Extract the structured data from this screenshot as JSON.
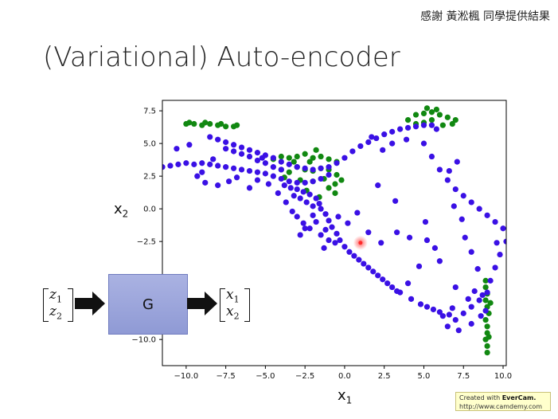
{
  "header": {
    "credit": "感謝 黃淞楓 同學提供結果",
    "title": "(Variational) Auto-encoder"
  },
  "chart_data": {
    "type": "scatter",
    "xlim": [
      -11.5,
      10.2
    ],
    "ylim": [
      -12.0,
      8.3
    ],
    "x_ticks": [
      -10.0,
      -7.5,
      -5.0,
      -2.5,
      0.0,
      2.5,
      5.0,
      7.5,
      10.0
    ],
    "x_tick_labels": [
      "−10.0",
      "−7.5",
      "−5.0",
      "−2.5",
      "0.0",
      "2.5",
      "5.0",
      "7.5",
      "10.0"
    ],
    "y_ticks": [
      7.5,
      5.0,
      2.5,
      0.0,
      -2.5,
      -10.0
    ],
    "y_tick_labels": [
      "7.5",
      "5.0",
      "2.5",
      "0.0",
      "−2.5",
      "−10.0"
    ],
    "xlabel": "x",
    "xlabel_sub": "1",
    "ylabel": "x",
    "ylabel_sub": "2",
    "grid": false,
    "highlight_point": {
      "x": 1.0,
      "y": -2.6,
      "color": "#ff2a2a"
    },
    "series": [
      {
        "color": "#118811",
        "points": [
          [
            -10.0,
            6.5
          ],
          [
            -9.5,
            6.5
          ],
          [
            -9.0,
            6.4
          ],
          [
            -8.5,
            6.5
          ],
          [
            -8.0,
            6.4
          ],
          [
            -7.5,
            6.3
          ],
          [
            -7.0,
            6.3
          ],
          [
            -9.8,
            6.6
          ],
          [
            -8.8,
            6.6
          ],
          [
            -7.8,
            6.5
          ],
          [
            -6.8,
            6.4
          ],
          [
            -4.5,
            3.8
          ],
          [
            -4.0,
            4.0
          ],
          [
            -3.5,
            3.9
          ],
          [
            -3.0,
            4.0
          ],
          [
            -2.5,
            4.2
          ],
          [
            -2.0,
            3.9
          ],
          [
            -1.5,
            4.0
          ],
          [
            -1.0,
            3.8
          ],
          [
            -0.5,
            3.6
          ],
          [
            -1.8,
            4.5
          ],
          [
            -4.0,
            3.0
          ],
          [
            -3.5,
            2.8
          ],
          [
            -3.0,
            3.2
          ],
          [
            -2.5,
            3.0
          ],
          [
            -2.0,
            2.9
          ],
          [
            -1.5,
            3.1
          ],
          [
            -1.0,
            3.0
          ],
          [
            -0.5,
            2.6
          ],
          [
            -2.8,
            2.2
          ],
          [
            -2.0,
            2.1
          ],
          [
            -1.3,
            2.3
          ],
          [
            -0.6,
            1.9
          ],
          [
            -3.8,
            2.4
          ],
          [
            -1.0,
            1.6
          ],
          [
            -2.4,
            1.4
          ],
          [
            -1.6,
            0.9
          ],
          [
            -0.6,
            1.2
          ],
          [
            -0.2,
            2.2
          ],
          [
            -3.2,
            3.6
          ],
          [
            -2.2,
            3.6
          ],
          [
            4.5,
            7.2
          ],
          [
            5.0,
            7.3
          ],
          [
            5.5,
            7.4
          ],
          [
            6.0,
            7.2
          ],
          [
            6.5,
            7.0
          ],
          [
            5.2,
            7.7
          ],
          [
            5.8,
            7.6
          ],
          [
            4.0,
            6.8
          ],
          [
            4.5,
            6.5
          ],
          [
            5.0,
            6.6
          ],
          [
            6.8,
            6.5
          ],
          [
            7.0,
            6.8
          ],
          [
            6.2,
            6.4
          ],
          [
            5.5,
            6.8
          ],
          [
            8.9,
            -6.0
          ],
          [
            9.0,
            -6.5
          ],
          [
            8.9,
            -7.0
          ],
          [
            9.0,
            -7.5
          ],
          [
            9.1,
            -8.0
          ],
          [
            8.9,
            -8.5
          ],
          [
            9.0,
            -9.0
          ],
          [
            9.0,
            -9.5
          ],
          [
            8.9,
            -10.0
          ],
          [
            9.0,
            -10.5
          ],
          [
            9.0,
            -11.0
          ],
          [
            8.9,
            -5.5
          ],
          [
            9.1,
            -9.8
          ],
          [
            9.2,
            -7.2
          ]
        ]
      },
      {
        "color": "#3a10e5",
        "points": [
          [
            -11.5,
            3.2
          ],
          [
            -11.0,
            3.3
          ],
          [
            -10.5,
            3.4
          ],
          [
            -10.0,
            3.5
          ],
          [
            -9.5,
            3.4
          ],
          [
            -9.0,
            3.5
          ],
          [
            -8.5,
            3.4
          ],
          [
            -8.0,
            3.3
          ],
          [
            -7.5,
            3.2
          ],
          [
            -7.0,
            3.1
          ],
          [
            -6.5,
            3.0
          ],
          [
            -6.0,
            2.9
          ],
          [
            -5.5,
            2.8
          ],
          [
            -5.0,
            2.7
          ],
          [
            -4.5,
            2.5
          ],
          [
            -4.0,
            2.3
          ],
          [
            -3.5,
            2.1
          ],
          [
            -3.0,
            2.0
          ],
          [
            -2.5,
            2.0
          ],
          [
            -2.0,
            2.1
          ],
          [
            -1.5,
            2.3
          ],
          [
            -1.0,
            2.6
          ],
          [
            -8.5,
            5.5
          ],
          [
            -8.0,
            5.3
          ],
          [
            -7.5,
            5.1
          ],
          [
            -7.0,
            4.9
          ],
          [
            -6.5,
            4.7
          ],
          [
            -6.0,
            4.5
          ],
          [
            -5.5,
            4.3
          ],
          [
            -5.0,
            4.1
          ],
          [
            -4.5,
            3.9
          ],
          [
            -4.0,
            3.6
          ],
          [
            -3.5,
            3.4
          ],
          [
            -3.0,
            3.2
          ],
          [
            -2.5,
            3.1
          ],
          [
            -2.0,
            3.0
          ],
          [
            -1.5,
            3.1
          ],
          [
            -1.0,
            3.2
          ],
          [
            -0.5,
            3.5
          ],
          [
            0.0,
            3.9
          ],
          [
            0.5,
            4.4
          ],
          [
            1.0,
            4.8
          ],
          [
            1.5,
            5.1
          ],
          [
            2.0,
            5.4
          ],
          [
            2.5,
            5.7
          ],
          [
            3.0,
            5.9
          ],
          [
            3.5,
            6.1
          ],
          [
            4.0,
            6.2
          ],
          [
            4.5,
            6.3
          ],
          [
            5.0,
            6.4
          ],
          [
            5.5,
            6.4
          ],
          [
            5.8,
            6.1
          ],
          [
            -7.0,
            4.4
          ],
          [
            -6.0,
            4.0
          ],
          [
            -5.0,
            3.5
          ],
          [
            -4.0,
            3.0
          ],
          [
            -7.5,
            4.6
          ],
          [
            -6.5,
            4.2
          ],
          [
            -5.5,
            3.7
          ],
          [
            -4.5,
            3.2
          ],
          [
            -3.8,
            1.8
          ],
          [
            -3.4,
            1.6
          ],
          [
            -3.0,
            1.5
          ],
          [
            -2.6,
            1.3
          ],
          [
            -2.2,
            1.1
          ],
          [
            -1.8,
            0.8
          ],
          [
            -1.6,
            0.4
          ],
          [
            -2.0,
            0.2
          ],
          [
            -2.4,
            0.5
          ],
          [
            -2.8,
            0.8
          ],
          [
            -3.2,
            1.0
          ],
          [
            -1.5,
            0.0
          ],
          [
            -1.2,
            -0.4
          ],
          [
            -1.0,
            -0.9
          ],
          [
            -0.8,
            -1.4
          ],
          [
            -0.5,
            -1.9
          ],
          [
            -0.3,
            -2.4
          ],
          [
            0.0,
            -2.9
          ],
          [
            0.3,
            -3.3
          ],
          [
            0.6,
            -3.6
          ],
          [
            0.9,
            -3.9
          ],
          [
            1.2,
            -4.2
          ],
          [
            1.5,
            -4.5
          ],
          [
            1.8,
            -4.8
          ],
          [
            2.1,
            -5.1
          ],
          [
            2.4,
            -5.4
          ],
          [
            2.7,
            -5.7
          ],
          [
            3.0,
            -6.0
          ],
          [
            3.3,
            -6.3
          ],
          [
            -2.0,
            -0.5
          ],
          [
            -1.8,
            -1.0
          ],
          [
            -2.2,
            -1.5
          ],
          [
            -1.5,
            -2.0
          ],
          [
            -1.0,
            -2.4
          ],
          [
            -2.6,
            -1.1
          ],
          [
            -3.0,
            -0.6
          ],
          [
            -0.6,
            -2.6
          ],
          [
            -1.2,
            -1.6
          ],
          [
            -2.8,
            -2.0
          ],
          [
            5.0,
            5.0
          ],
          [
            5.5,
            4.0
          ],
          [
            6.0,
            3.0
          ],
          [
            6.5,
            2.2
          ],
          [
            7.0,
            1.5
          ],
          [
            7.5,
            1.0
          ],
          [
            8.0,
            0.5
          ],
          [
            8.5,
            0.0
          ],
          [
            9.0,
            -0.5
          ],
          [
            9.5,
            -1.0
          ],
          [
            10.0,
            -1.5
          ],
          [
            10.2,
            -2.5
          ],
          [
            9.8,
            -3.5
          ],
          [
            9.5,
            -4.5
          ],
          [
            9.2,
            -5.5
          ],
          [
            9.0,
            -6.4
          ],
          [
            8.5,
            -7.0
          ],
          [
            8.0,
            -7.5
          ],
          [
            7.5,
            -8.0
          ],
          [
            7.0,
            -8.5
          ],
          [
            6.5,
            -9.0
          ],
          [
            7.2,
            -9.3
          ],
          [
            8.0,
            -8.8
          ],
          [
            8.6,
            -8.2
          ],
          [
            6.8,
            -7.6
          ],
          [
            7.8,
            -6.9
          ],
          [
            8.2,
            -6.3
          ],
          [
            7.0,
            -6.0
          ],
          [
            6.2,
            -8.2
          ],
          [
            8.9,
            -7.8
          ],
          [
            8.7,
            -6.6
          ],
          [
            3.5,
            -6.4
          ],
          [
            4.2,
            -6.9
          ],
          [
            4.8,
            -7.3
          ],
          [
            5.2,
            -7.5
          ],
          [
            5.6,
            -7.7
          ],
          [
            6.0,
            -7.9
          ],
          [
            6.6,
            -8.1
          ],
          [
            -9.0,
            2.8
          ],
          [
            -8.3,
            3.8
          ],
          [
            -6.8,
            2.4
          ],
          [
            -5.2,
            3.9
          ],
          [
            -4.2,
            1.2
          ],
          [
            -3.7,
            0.5
          ],
          [
            -3.3,
            -0.2
          ],
          [
            -2.5,
            -1.5
          ],
          [
            -1.3,
            -3.0
          ],
          [
            -0.4,
            -0.6
          ],
          [
            0.2,
            -1.1
          ],
          [
            1.5,
            -1.8
          ],
          [
            0.8,
            -0.3
          ],
          [
            2.3,
            -2.6
          ],
          [
            -6.0,
            1.6
          ],
          [
            -5.5,
            2.2
          ],
          [
            -4.8,
            1.9
          ],
          [
            -7.3,
            2.1
          ],
          [
            -8.0,
            1.8
          ],
          [
            -8.8,
            2.0
          ],
          [
            -10.6,
            4.6
          ],
          [
            -9.8,
            4.9
          ],
          [
            -9.3,
            2.5
          ],
          [
            1.7,
            5.5
          ],
          [
            2.4,
            4.5
          ],
          [
            2.1,
            1.8
          ],
          [
            3.2,
            0.6
          ],
          [
            3.3,
            -1.8
          ],
          [
            4.1,
            -2.2
          ],
          [
            5.2,
            -2.4
          ],
          [
            5.7,
            -3.0
          ],
          [
            6.0,
            -4.0
          ],
          [
            6.9,
            0.2
          ],
          [
            7.4,
            -0.8
          ],
          [
            7.6,
            -2.2
          ],
          [
            8.0,
            -3.3
          ],
          [
            8.4,
            -4.6
          ],
          [
            6.6,
            2.9
          ],
          [
            7.1,
            3.6
          ],
          [
            3.0,
            5.0
          ],
          [
            3.9,
            5.3
          ],
          [
            5.1,
            -1.0
          ],
          [
            4.7,
            -4.4
          ],
          [
            4.0,
            -5.7
          ],
          [
            9.6,
            -2.6
          ]
        ]
      }
    ]
  },
  "diagram": {
    "input_vector": [
      "z",
      "1",
      "z",
      "2"
    ],
    "generator_label": "G",
    "output_vector": [
      "x",
      "1",
      "x",
      "2"
    ]
  },
  "watermark": {
    "line1_prefix": "Created with ",
    "line1_brand": "EverCam.",
    "line2": "http://www.camdemy.com"
  }
}
